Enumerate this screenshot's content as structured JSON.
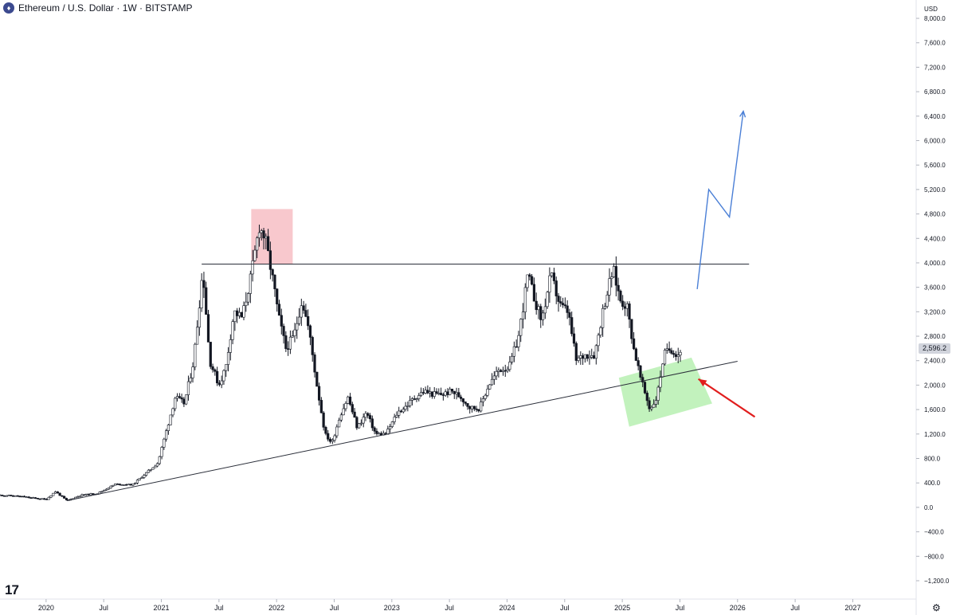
{
  "header": {
    "title": "Ethereum / U.S. Dollar · 1W · BITSTAMP",
    "symbol_icon": "ethereum-icon"
  },
  "axis": {
    "currency": "USD",
    "current_price_label": "2,596.2"
  },
  "icons": {
    "logo": "tradingview-logo-icon",
    "settings": "gear-icon"
  },
  "colors": {
    "candle": "#131722",
    "trendline": "#2a2e39",
    "resistance_zone": "#f7bec4",
    "support_zone": "#b7f0b1",
    "projection": "#4a7fd6",
    "arrow": "#e11d1d"
  },
  "chart_data": {
    "type": "candlestick",
    "title": "Ethereum / U.S. Dollar · 1W · BITSTAMP",
    "ylim": [
      -1500,
      8300
    ],
    "xlim": [
      2019.6,
      2027.55
    ],
    "y_ticks": [
      -1200,
      -800,
      -400,
      0,
      400,
      800,
      1200,
      1600,
      2000,
      2400,
      2800,
      3200,
      3600,
      4000,
      4400,
      4800,
      5200,
      5600,
      6000,
      6400,
      6800,
      7200,
      7600,
      8000
    ],
    "y_tick_labels": [
      "−1,200.0",
      "−800.0",
      "−400.0",
      "0.0",
      "400.0",
      "800.0",
      "1,200.0",
      "1,600.0",
      "2,000.0",
      "2,400.0",
      "2,800.0",
      "3,200.0",
      "3,600.0",
      "4,000.0",
      "4,400.0",
      "4,800.0",
      "5,200.0",
      "5,600.0",
      "6,000.0",
      "6,400.0",
      "6,800.0",
      "7,200.0",
      "7,600.0",
      "8,000.0"
    ],
    "x_ticks": [
      {
        "label": "2020",
        "x": 2020.0
      },
      {
        "label": "Jul",
        "x": 2020.5
      },
      {
        "label": "2021",
        "x": 2021.0
      },
      {
        "label": "Jul",
        "x": 2021.5
      },
      {
        "label": "2022",
        "x": 2022.0
      },
      {
        "label": "Jul",
        "x": 2022.5
      },
      {
        "label": "2023",
        "x": 2023.0
      },
      {
        "label": "Jul",
        "x": 2023.5
      },
      {
        "label": "2024",
        "x": 2024.0
      },
      {
        "label": "Jul",
        "x": 2024.5
      },
      {
        "label": "2025",
        "x": 2025.0
      },
      {
        "label": "Jul",
        "x": 2025.5
      },
      {
        "label": "2026",
        "x": 2026.0
      },
      {
        "label": "Jul",
        "x": 2026.5
      },
      {
        "label": "2027",
        "x": 2027.0
      }
    ],
    "price_path": [
      [
        2019.6,
        200
      ],
      [
        2019.75,
        185
      ],
      [
        2019.9,
        150
      ],
      [
        2020.0,
        130
      ],
      [
        2020.08,
        260
      ],
      [
        2020.18,
        110
      ],
      [
        2020.3,
        200
      ],
      [
        2020.45,
        230
      ],
      [
        2020.6,
        380
      ],
      [
        2020.75,
        370
      ],
      [
        2020.88,
        580
      ],
      [
        2020.97,
        730
      ],
      [
        2021.05,
        1300
      ],
      [
        2021.12,
        1800
      ],
      [
        2021.2,
        1700
      ],
      [
        2021.28,
        2400
      ],
      [
        2021.36,
        3900
      ],
      [
        2021.42,
        2400
      ],
      [
        2021.5,
        2000
      ],
      [
        2021.56,
        2300
      ],
      [
        2021.63,
        3200
      ],
      [
        2021.7,
        3100
      ],
      [
        2021.78,
        3800
      ],
      [
        2021.85,
        4600
      ],
      [
        2021.9,
        4400
      ],
      [
        2021.96,
        3800
      ],
      [
        2022.02,
        3100
      ],
      [
        2022.08,
        2600
      ],
      [
        2022.15,
        2800
      ],
      [
        2022.22,
        3400
      ],
      [
        2022.28,
        2900
      ],
      [
        2022.35,
        2000
      ],
      [
        2022.42,
        1200
      ],
      [
        2022.48,
        1050
      ],
      [
        2022.55,
        1500
      ],
      [
        2022.62,
        1800
      ],
      [
        2022.7,
        1300
      ],
      [
        2022.78,
        1550
      ],
      [
        2022.86,
        1200
      ],
      [
        2022.95,
        1200
      ],
      [
        2023.05,
        1550
      ],
      [
        2023.12,
        1650
      ],
      [
        2023.2,
        1800
      ],
      [
        2023.28,
        1900
      ],
      [
        2023.36,
        1850
      ],
      [
        2023.44,
        1850
      ],
      [
        2023.52,
        1900
      ],
      [
        2023.6,
        1800
      ],
      [
        2023.68,
        1630
      ],
      [
        2023.76,
        1620
      ],
      [
        2023.84,
        2000
      ],
      [
        2023.93,
        2250
      ],
      [
        2024.02,
        2300
      ],
      [
        2024.1,
        2800
      ],
      [
        2024.18,
        3800
      ],
      [
        2024.24,
        3400
      ],
      [
        2024.3,
        3050
      ],
      [
        2024.38,
        3800
      ],
      [
        2024.46,
        3300
      ],
      [
        2024.53,
        3200
      ],
      [
        2024.6,
        2400
      ],
      [
        2024.68,
        2500
      ],
      [
        2024.76,
        2500
      ],
      [
        2024.84,
        3300
      ],
      [
        2024.92,
        3900
      ],
      [
        2024.98,
        3400
      ],
      [
        2025.04,
        3300
      ],
      [
        2025.1,
        2600
      ],
      [
        2025.16,
        2100
      ],
      [
        2025.24,
        1600
      ],
      [
        2025.3,
        1800
      ],
      [
        2025.36,
        2500
      ],
      [
        2025.42,
        2600
      ],
      [
        2025.48,
        2500
      ],
      [
        2025.52,
        2596
      ]
    ],
    "overlays": {
      "horizontal_resistance": {
        "x": [
          2021.35,
          2026.1
        ],
        "y": 3980
      },
      "ascending_trendline": {
        "start": [
          2020.18,
          110
        ],
        "end": [
          2026.0,
          2390
        ]
      },
      "resistance_zone": {
        "x": [
          2021.78,
          2022.14
        ],
        "y": [
          3980,
          4880
        ]
      },
      "support_zone_polygon": [
        [
          2024.97,
          2120
        ],
        [
          2025.6,
          2450
        ],
        [
          2025.78,
          1700
        ],
        [
          2025.06,
          1320
        ]
      ],
      "projection_path": [
        [
          2025.65,
          3570
        ],
        [
          2025.75,
          5200
        ],
        [
          2025.93,
          4750
        ],
        [
          2026.05,
          6480
        ]
      ],
      "red_arrow": {
        "from": [
          2026.15,
          1480
        ],
        "to": [
          2025.66,
          2100
        ]
      }
    }
  }
}
